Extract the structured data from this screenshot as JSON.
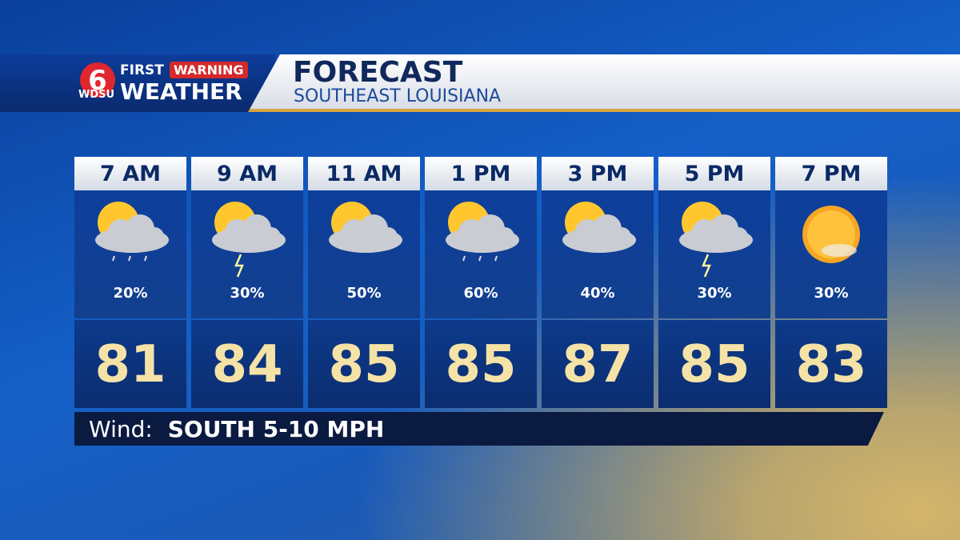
{
  "header": {
    "logo_channel": "6",
    "logo_first": "FIRST",
    "logo_warning": "WARNING",
    "logo_station": "WDSU",
    "logo_weather": "WEATHER",
    "title": "FORECAST",
    "subtitle": "SOUTHEAST LOUISIANA"
  },
  "forecast": [
    {
      "time": "7 AM",
      "precip": "20%",
      "temp": 81
    },
    {
      "time": "9 AM",
      "precip": "30%",
      "temp": 84
    },
    {
      "time": "11 AM",
      "precip": "50%",
      "temp": 85
    },
    {
      "time": "1 PM",
      "precip": "60%",
      "temp": 85
    },
    {
      "time": "3 PM",
      "precip": "40%",
      "temp": 87
    },
    {
      "time": "5 PM",
      "precip": "30%",
      "temp": 85
    },
    {
      "time": "7 PM",
      "precip": "30%",
      "temp": 83
    }
  ],
  "wind": {
    "label": "Wind:",
    "value": "SOUTH 5-10 MPH"
  }
}
